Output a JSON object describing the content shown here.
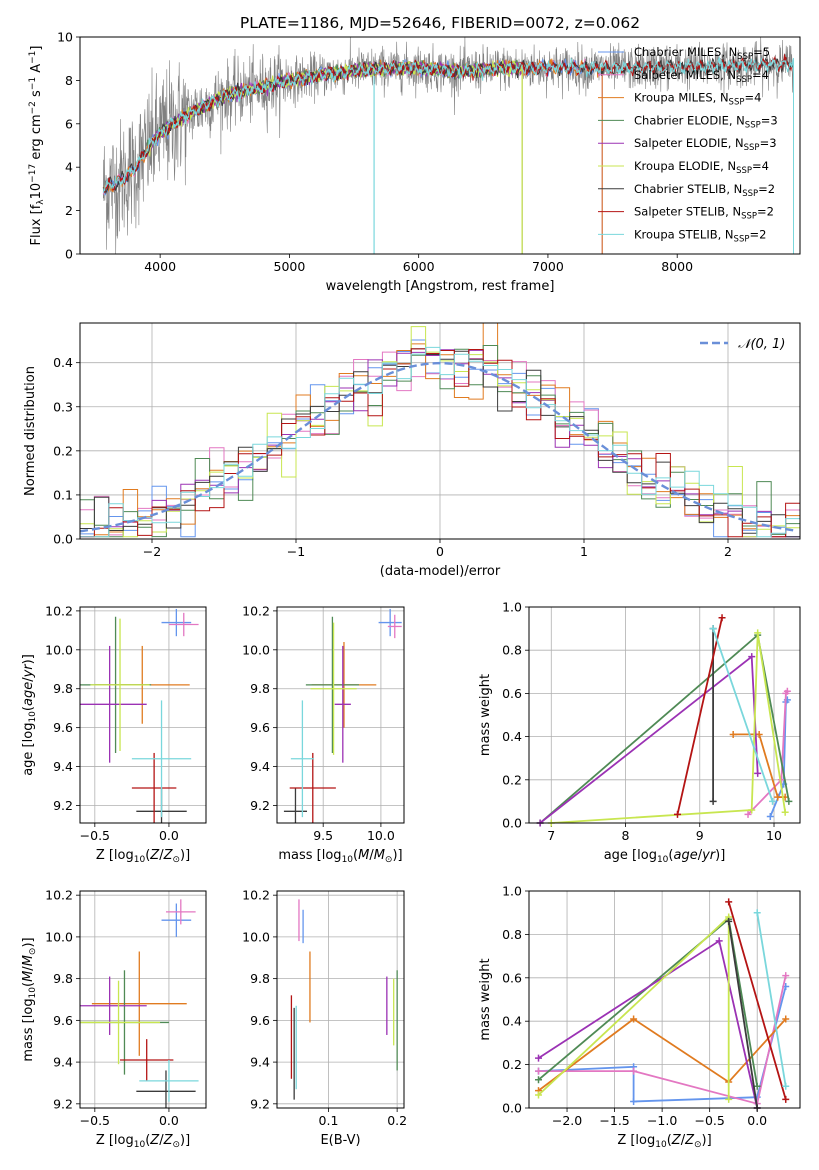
{
  "colors": {
    "Chabrier MILES": "#6495ed",
    "Salpeter MILES": "#e377c2",
    "Kroupa MILES": "#e07b20",
    "Chabrier ELODIE": "#4f8a55",
    "Salpeter ELODIE": "#9b32b4",
    "Kroupa ELODIE": "#c8e650",
    "Chabrier STELIB": "#3c3c3c",
    "Salpeter STELIB": "#b41414",
    "Kroupa STELIB": "#7ad7dc",
    "observed": "#808080",
    "gaussian": "#6a8fd8"
  },
  "chart_data": [
    {
      "type": "line",
      "title": "PLATE=1186, MJD=52646, FIBERID=0072, z=0.062",
      "xlabel": "wavelength [Angstrom, rest frame]",
      "ylabel": "Flux [f_λ10⁻¹⁷ erg cm⁻² s⁻¹ A⁻¹]",
      "xlim": [
        3380,
        8950
      ],
      "ylim": [
        0,
        10
      ],
      "xticks": [
        4000,
        5000,
        6000,
        7000,
        8000
      ],
      "yticks": [
        0,
        2,
        4,
        6,
        8,
        10
      ],
      "grid": false,
      "legend": "right",
      "spectrum_knots": [
        [
          3560,
          3.0
        ],
        [
          3700,
          3.4
        ],
        [
          3800,
          3.9
        ],
        [
          3900,
          4.8
        ],
        [
          4000,
          5.6
        ],
        [
          4200,
          6.4
        ],
        [
          4500,
          7.3
        ],
        [
          4800,
          7.7
        ],
        [
          5000,
          8.0
        ],
        [
          5300,
          8.3
        ],
        [
          5600,
          8.5
        ],
        [
          6000,
          8.6
        ],
        [
          6300,
          8.4
        ],
        [
          6600,
          8.55
        ],
        [
          7000,
          8.6
        ],
        [
          7500,
          8.55
        ],
        [
          8000,
          8.6
        ],
        [
          8500,
          8.7
        ],
        [
          8900,
          8.75
        ]
      ],
      "series": [
        {
          "name": "Chabrier MILES, N_SSP=5",
          "label_main": "Chabrier MILES, N",
          "label_sub": "SSP",
          "label_tail": "=5",
          "color_key": "Chabrier MILES",
          "range": [
            3560,
            7420
          ]
        },
        {
          "name": "Salpeter MILES, N_SSP=4",
          "label_main": "Salpeter MILES, N",
          "label_sub": "SSP",
          "label_tail": "=4",
          "color_key": "Salpeter MILES",
          "range": [
            3560,
            7420
          ]
        },
        {
          "name": "Kroupa MILES, N_SSP=4",
          "label_main": "Kroupa MILES, N",
          "label_sub": "SSP",
          "label_tail": "=4",
          "color_key": "Kroupa MILES",
          "range": [
            3560,
            7420
          ]
        },
        {
          "name": "Chabrier ELODIE, N_SSP=3",
          "label_main": "Chabrier ELODIE, N",
          "label_sub": "SSP",
          "label_tail": "=3",
          "color_key": "Chabrier ELODIE",
          "range": [
            3900,
            6800
          ]
        },
        {
          "name": "Salpeter ELODIE, N_SSP=3",
          "label_main": "Salpeter ELODIE, N",
          "label_sub": "SSP",
          "label_tail": "=3",
          "color_key": "Salpeter ELODIE",
          "range": [
            3900,
            6800
          ]
        },
        {
          "name": "Kroupa ELODIE, N_SSP=4",
          "label_main": "Kroupa ELODIE, N",
          "label_sub": "SSP",
          "label_tail": "=4",
          "color_key": "Kroupa ELODIE",
          "range": [
            3900,
            6800
          ]
        },
        {
          "name": "Chabrier STELIB, N_SSP=2",
          "label_main": "Chabrier STELIB, N",
          "label_sub": "SSP",
          "label_tail": "=2",
          "color_key": "Chabrier STELIB",
          "range": [
            3560,
            8900
          ]
        },
        {
          "name": "Salpeter STELIB, N_SSP=2",
          "label_main": "Salpeter STELIB, N",
          "label_sub": "SSP",
          "label_tail": "=2",
          "color_key": "Salpeter STELIB",
          "range": [
            3560,
            8900
          ]
        },
        {
          "name": "Kroupa STELIB, N_SSP=2",
          "label_main": "Kroupa STELIB, N",
          "label_sub": "SSP",
          "label_tail": "=2",
          "color_key": "Kroupa STELIB",
          "range": [
            3560,
            8900
          ]
        }
      ]
    },
    {
      "type": "bar",
      "title": "",
      "xlabel": "(data-model)/error",
      "ylabel": "Normed distribution",
      "xlim": [
        -2.5,
        2.5
      ],
      "ylim": [
        0,
        0.49
      ],
      "xticks": [
        -2,
        -1,
        0,
        1,
        2
      ],
      "yticks": [
        0.0,
        0.1,
        0.2,
        0.3,
        0.4
      ],
      "grid": true,
      "legend": "top-right",
      "legend_label": "𝒩(0, 1)",
      "bin_width": 0.1,
      "histogram_note": "step histograms for nine models approximating N(0,1)",
      "gaussian": {
        "mean": 0,
        "sigma": 1
      }
    },
    {
      "type": "scatter",
      "title": "",
      "xlabel": "Z [log₁₀(Z/Z⊙)]",
      "ylabel": "age [log₁₀(age/yr)]",
      "xlim": [
        -0.6,
        0.25
      ],
      "ylim": [
        9.11,
        10.22
      ],
      "xticks": [
        -0.5,
        0.0
      ],
      "yticks": [
        9.2,
        9.4,
        9.6,
        9.8,
        10.0,
        10.2
      ],
      "grid": true,
      "errorbars": [
        {
          "model": "Chabrier MILES",
          "x": 0.05,
          "y": 10.14,
          "xerr": 0.1,
          "yerr": 0.07
        },
        {
          "model": "Salpeter MILES",
          "x": 0.1,
          "y": 10.13,
          "xerr": 0.1,
          "yerr": 0.06
        },
        {
          "model": "Kroupa MILES",
          "x": -0.18,
          "y": 9.82,
          "xerr": 0.32,
          "yerr": 0.2
        },
        {
          "model": "Chabrier ELODIE",
          "x": -0.36,
          "y": 9.82,
          "xerr": 0.24,
          "yerr": 0.35
        },
        {
          "model": "Salpeter ELODIE",
          "x": -0.4,
          "y": 9.72,
          "xerr": 0.25,
          "yerr": 0.3
        },
        {
          "model": "Kroupa ELODIE",
          "x": -0.33,
          "y": 9.82,
          "xerr": 0.2,
          "yerr": 0.34
        },
        {
          "model": "Chabrier STELIB",
          "x": -0.05,
          "y": 9.17,
          "xerr": 0.17,
          "yerr": 0.12
        },
        {
          "model": "Salpeter STELIB",
          "x": -0.1,
          "y": 9.29,
          "xerr": 0.15,
          "yerr": 0.18
        },
        {
          "model": "Kroupa STELIB",
          "x": -0.05,
          "y": 9.44,
          "xerr": 0.2,
          "yerr": 0.3
        }
      ]
    },
    {
      "type": "scatter",
      "title": "",
      "xlabel": "mass [log₁₀(M/M⊙)]",
      "ylabel": "",
      "xlim": [
        9.1,
        10.2
      ],
      "ylim": [
        9.11,
        10.22
      ],
      "xticks": [
        9.5,
        10.0
      ],
      "yticks": [
        9.2,
        9.4,
        9.6,
        9.8,
        10.0,
        10.2
      ],
      "grid": true,
      "errorbars": [
        {
          "model": "Chabrier MILES",
          "x": 10.08,
          "y": 10.14,
          "xerr": 0.1,
          "yerr": 0.07
        },
        {
          "model": "Salpeter MILES",
          "x": 10.12,
          "y": 10.12,
          "xerr": 0.06,
          "yerr": 0.06
        },
        {
          "model": "Kroupa MILES",
          "x": 9.68,
          "y": 9.82,
          "xerr": 0.28,
          "yerr": 0.22
        },
        {
          "model": "Chabrier ELODIE",
          "x": 9.58,
          "y": 9.82,
          "xerr": 0.23,
          "yerr": 0.35
        },
        {
          "model": "Salpeter ELODIE",
          "x": 9.67,
          "y": 9.72,
          "xerr": 0.07,
          "yerr": 0.3
        },
        {
          "model": "Kroupa ELODIE",
          "x": 9.59,
          "y": 9.8,
          "xerr": 0.2,
          "yerr": 0.34
        },
        {
          "model": "Chabrier STELIB",
          "x": 9.26,
          "y": 9.17,
          "xerr": 0.1,
          "yerr": 0.12
        },
        {
          "model": "Salpeter STELIB",
          "x": 9.41,
          "y": 9.29,
          "xerr": 0.2,
          "yerr": 0.18
        },
        {
          "model": "Kroupa STELIB",
          "x": 9.32,
          "y": 9.44,
          "xerr": 0.1,
          "yerr": 0.3
        }
      ]
    },
    {
      "type": "line",
      "title": "",
      "xlabel": "age [log₁₀(age/yr)]",
      "ylabel": "mass weight",
      "xlim": [
        6.7,
        10.35
      ],
      "ylim": [
        0,
        1
      ],
      "xticks": [
        7,
        8,
        9,
        10
      ],
      "yticks": [
        0.0,
        0.2,
        0.4,
        0.6,
        0.8,
        1.0
      ],
      "grid": true,
      "series": [
        {
          "model": "Chabrier MILES",
          "points": [
            [
              9.95,
              0.03
            ],
            [
              10.13,
              0.18
            ],
            [
              10.16,
              0.56
            ],
            [
              10.18,
              0.57
            ]
          ]
        },
        {
          "model": "Salpeter MILES",
          "points": [
            [
              9.65,
              0.04
            ],
            [
              10.1,
              0.2
            ],
            [
              10.16,
              0.6
            ],
            [
              10.18,
              0.61
            ]
          ]
        },
        {
          "model": "Kroupa MILES",
          "points": [
            [
              9.45,
              0.41
            ],
            [
              9.8,
              0.41
            ],
            [
              10.05,
              0.12
            ],
            [
              10.15,
              0.12
            ]
          ]
        },
        {
          "model": "Chabrier ELODIE",
          "points": [
            [
              6.85,
              0.0
            ],
            [
              9.78,
              0.87
            ],
            [
              10.2,
              0.1
            ]
          ]
        },
        {
          "model": "Salpeter ELODIE",
          "points": [
            [
              6.85,
              0.0
            ],
            [
              9.7,
              0.77
            ],
            [
              9.78,
              0.23
            ]
          ]
        },
        {
          "model": "Kroupa ELODIE",
          "points": [
            [
              7.0,
              0.0
            ],
            [
              9.7,
              0.06
            ],
            [
              9.78,
              0.88
            ],
            [
              10.15,
              0.05
            ]
          ]
        },
        {
          "model": "Chabrier STELIB",
          "points": [
            [
              9.18,
              0.1
            ],
            [
              9.18,
              0.9
            ]
          ]
        },
        {
          "model": "Salpeter STELIB",
          "points": [
            [
              8.7,
              0.04
            ],
            [
              9.3,
              0.95
            ]
          ]
        },
        {
          "model": "Kroupa STELIB",
          "points": [
            [
              9.18,
              0.9
            ],
            [
              9.98,
              0.1
            ]
          ]
        }
      ]
    },
    {
      "type": "scatter",
      "title": "",
      "xlabel": "Z [log₁₀(Z/Z⊙)]",
      "ylabel": "mass [log₁₀(M/M⊙)]",
      "xlim": [
        -0.6,
        0.25
      ],
      "ylim": [
        9.18,
        10.22
      ],
      "xticks": [
        -0.5,
        0.0
      ],
      "yticks": [
        9.2,
        9.4,
        9.6,
        9.8,
        10.0,
        10.2
      ],
      "grid": true,
      "errorbars": [
        {
          "model": "Chabrier MILES",
          "x": 0.05,
          "y": 10.08,
          "xerr": 0.1,
          "yerr": 0.08
        },
        {
          "model": "Salpeter MILES",
          "x": 0.08,
          "y": 10.12,
          "xerr": 0.1,
          "yerr": 0.06
        },
        {
          "model": "Kroupa MILES",
          "x": -0.2,
          "y": 9.68,
          "xerr": 0.32,
          "yerr": 0.25
        },
        {
          "model": "Chabrier ELODIE",
          "x": -0.3,
          "y": 9.59,
          "xerr": 0.3,
          "yerr": 0.25
        },
        {
          "model": "Salpeter ELODIE",
          "x": -0.4,
          "y": 9.67,
          "xerr": 0.25,
          "yerr": 0.14
        },
        {
          "model": "Kroupa ELODIE",
          "x": -0.34,
          "y": 9.59,
          "xerr": 0.28,
          "yerr": 0.2
        },
        {
          "model": "Chabrier STELIB",
          "x": -0.02,
          "y": 9.26,
          "xerr": 0.2,
          "yerr": 0.1
        },
        {
          "model": "Salpeter STELIB",
          "x": -0.15,
          "y": 9.41,
          "xerr": 0.18,
          "yerr": 0.1
        },
        {
          "model": "Kroupa STELIB",
          "x": 0.0,
          "y": 9.31,
          "xerr": 0.2,
          "yerr": 0.1
        }
      ]
    },
    {
      "type": "scatter",
      "title": "",
      "xlabel": "E(B-V)",
      "ylabel": "",
      "xlim": [
        0.025,
        0.21
      ],
      "ylim": [
        9.18,
        10.22
      ],
      "xticks": [
        0.1,
        0.2
      ],
      "yticks": [
        9.2,
        9.4,
        9.6,
        9.8,
        10.0,
        10.2
      ],
      "grid": true,
      "errorbars": [
        {
          "model": "Chabrier MILES",
          "x": 0.063,
          "y": 10.05,
          "xerr": 0,
          "yerr": 0.08
        },
        {
          "model": "Salpeter MILES",
          "x": 0.057,
          "y": 10.08,
          "xerr": 0,
          "yerr": 0.1
        },
        {
          "model": "Kroupa MILES",
          "x": 0.073,
          "y": 9.76,
          "xerr": 0,
          "yerr": 0.17
        },
        {
          "model": "Chabrier ELODIE",
          "x": 0.2,
          "y": 9.6,
          "xerr": 0,
          "yerr": 0.24
        },
        {
          "model": "Salpeter ELODIE",
          "x": 0.185,
          "y": 9.67,
          "xerr": 0,
          "yerr": 0.14
        },
        {
          "model": "Kroupa ELODIE",
          "x": 0.195,
          "y": 9.64,
          "xerr": 0,
          "yerr": 0.16
        },
        {
          "model": "Chabrier STELIB",
          "x": 0.05,
          "y": 9.44,
          "xerr": 0,
          "yerr": 0.22
        },
        {
          "model": "Salpeter STELIB",
          "x": 0.046,
          "y": 9.52,
          "xerr": 0,
          "yerr": 0.2
        },
        {
          "model": "Kroupa STELIB",
          "x": 0.053,
          "y": 9.47,
          "xerr": 0,
          "yerr": 0.2
        }
      ]
    },
    {
      "type": "line",
      "title": "",
      "xlabel": "Z [log₁₀(Z/Z⊙)]",
      "ylabel": "mass weight",
      "xlim": [
        -2.4,
        0.45
      ],
      "ylim": [
        0,
        1
      ],
      "xticks": [
        -2.0,
        -1.5,
        -1.0,
        -0.5,
        0.0
      ],
      "yticks": [
        0.0,
        0.2,
        0.4,
        0.6,
        0.8,
        1.0
      ],
      "grid": true,
      "series": [
        {
          "model": "Chabrier MILES",
          "points": [
            [
              -2.3,
              0.17
            ],
            [
              -1.3,
              0.19
            ],
            [
              -1.3,
              0.03
            ],
            [
              0.0,
              0.05
            ],
            [
              0.3,
              0.56
            ]
          ]
        },
        {
          "model": "Salpeter MILES",
          "points": [
            [
              -2.3,
              0.17
            ],
            [
              -1.3,
              0.17
            ],
            [
              0.0,
              0.02
            ],
            [
              0.3,
              0.61
            ]
          ]
        },
        {
          "model": "Kroupa MILES",
          "points": [
            [
              -2.3,
              0.08
            ],
            [
              -1.3,
              0.41
            ],
            [
              -0.3,
              0.12
            ],
            [
              0.3,
              0.41
            ]
          ]
        },
        {
          "model": "Chabrier ELODIE",
          "points": [
            [
              -2.3,
              0.13
            ],
            [
              -0.3,
              0.87
            ],
            [
              0.0,
              0.1
            ]
          ]
        },
        {
          "model": "Salpeter ELODIE",
          "points": [
            [
              -2.3,
              0.23
            ],
            [
              -0.4,
              0.77
            ],
            [
              0.0,
              0.0
            ]
          ]
        },
        {
          "model": "Kroupa ELODIE",
          "points": [
            [
              -2.3,
              0.06
            ],
            [
              -0.3,
              0.88
            ],
            [
              -0.3,
              0.04
            ]
          ]
        },
        {
          "model": "Chabrier STELIB",
          "points": [
            [
              -0.3,
              0.86
            ],
            [
              0.0,
              0.0
            ]
          ]
        },
        {
          "model": "Salpeter STELIB",
          "points": [
            [
              -0.3,
              0.95
            ],
            [
              0.3,
              0.04
            ]
          ]
        },
        {
          "model": "Kroupa STELIB",
          "points": [
            [
              0.0,
              0.9
            ],
            [
              0.3,
              0.1
            ]
          ]
        }
      ]
    }
  ]
}
